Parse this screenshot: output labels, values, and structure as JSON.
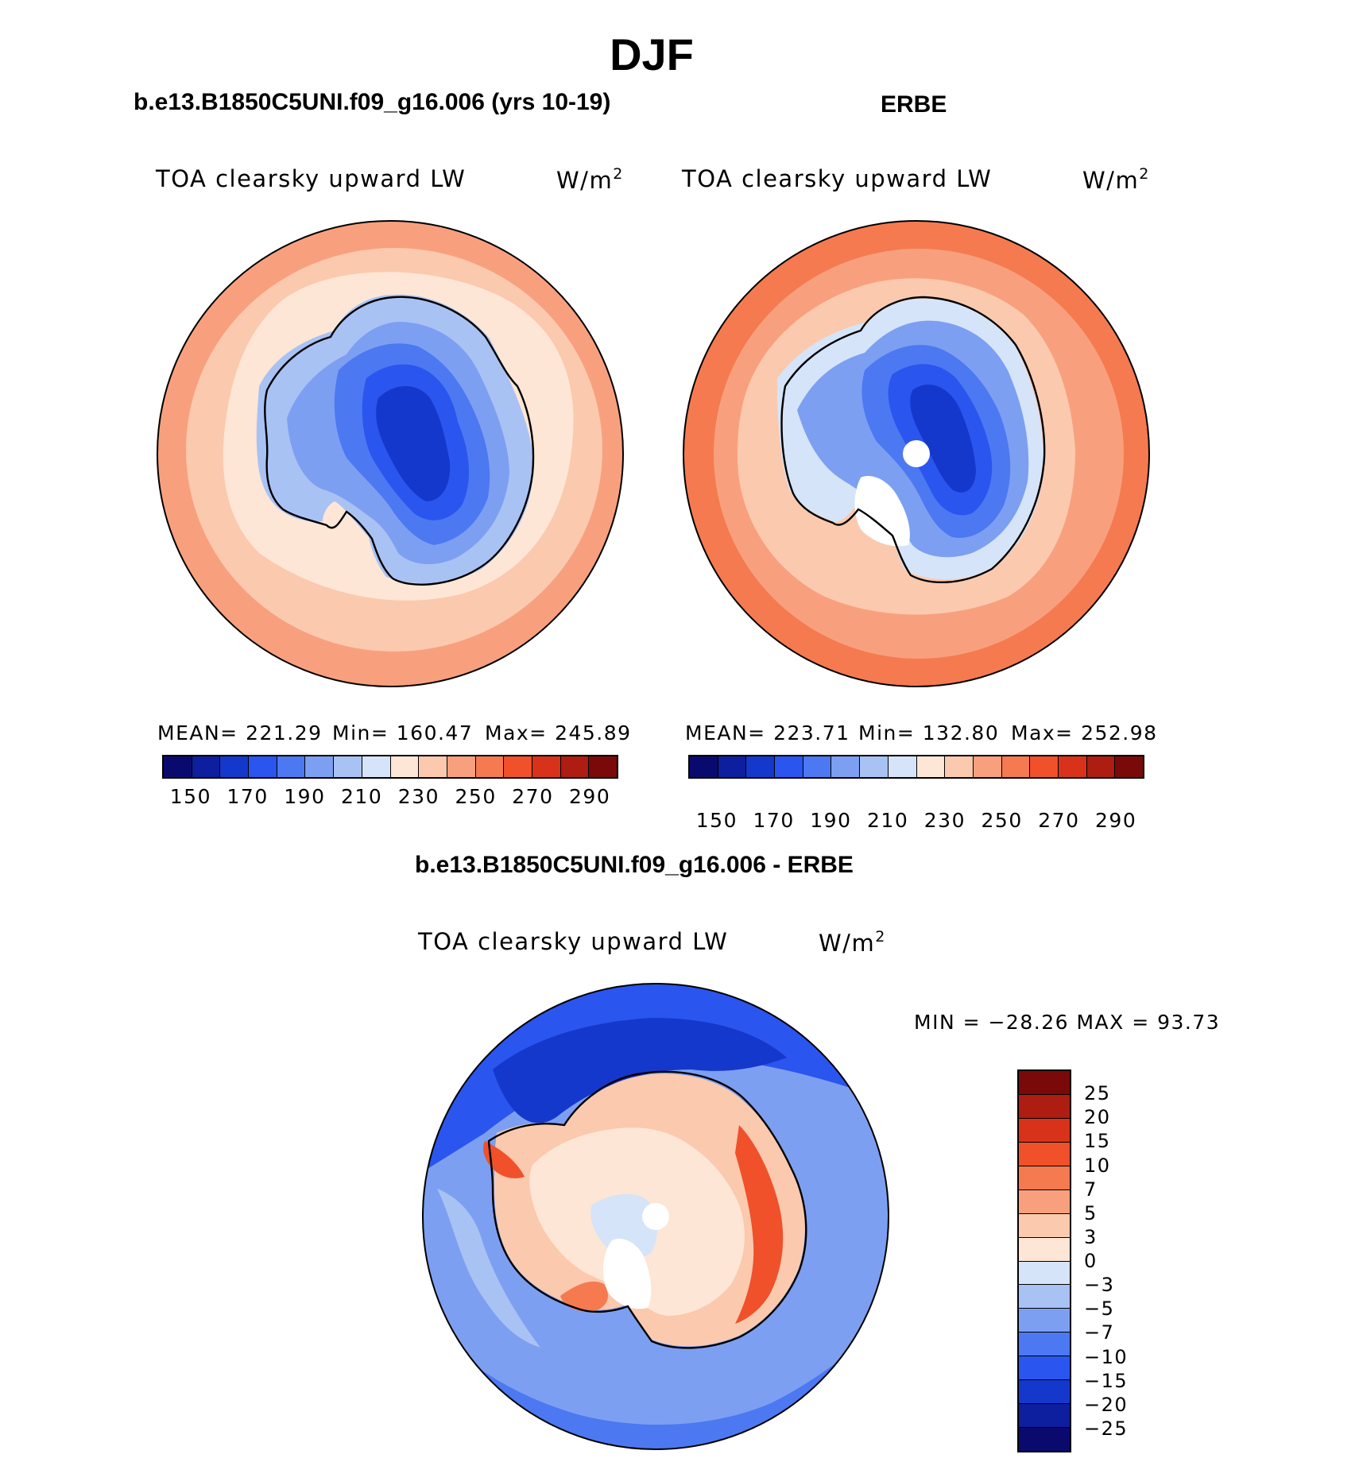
{
  "season_title": "DJF",
  "panels": {
    "model": {
      "title": "b.e13.B1850C5UNI.f09_g16.006 (yrs 10-19)",
      "var_label": "TOA clearsky upward LW",
      "units_base": "W/m",
      "units_exp": "2",
      "stats": {
        "mean": "MEAN= 221.29",
        "min": "Min= 160.47",
        "max": "Max= 245.89"
      }
    },
    "obs": {
      "title": "ERBE",
      "var_label": "TOA clearsky upward LW",
      "units_base": "W/m",
      "units_exp": "2",
      "stats": {
        "mean": "MEAN= 223.71",
        "min": "Min= 132.80",
        "max": "Max= 252.98"
      }
    },
    "diff": {
      "title": "b.e13.B1850C5UNI.f09_g16.006 - ERBE",
      "var_label": "TOA clearsky upward LW",
      "units_base": "W/m",
      "units_exp": "2",
      "minmax": "MIN = −28.26 MAX =   93.73"
    }
  },
  "abs_colorbar": {
    "colors": [
      "#0a0a6e",
      "#0d1e9e",
      "#1538cc",
      "#2a55ee",
      "#4c78f2",
      "#7d9ff2",
      "#a9c2f4",
      "#d5e4f8",
      "#fde6d5",
      "#fbc9ae",
      "#f8a07e",
      "#f57a50",
      "#f0502a",
      "#d8331a",
      "#ad1d12",
      "#7a0a0a"
    ],
    "tick_labels": [
      "150",
      "170",
      "190",
      "210",
      "230",
      "250",
      "270",
      "290"
    ]
  },
  "diff_colorbar": {
    "colors": [
      "#7a0a0a",
      "#ad1d12",
      "#d8331a",
      "#f0502a",
      "#f57a50",
      "#f8a07e",
      "#fbc9ae",
      "#fde6d5",
      "#d5e4f8",
      "#a9c2f4",
      "#7d9ff2",
      "#4c78f2",
      "#2a55ee",
      "#1538cc",
      "#0d1e9e",
      "#0a0a6e"
    ],
    "tick_labels": [
      "25",
      "20",
      "15",
      "10",
      "7",
      "5",
      "3",
      "0",
      "−3",
      "−5",
      "−7",
      "−10",
      "−15",
      "−20",
      "−25"
    ]
  },
  "chart_data": [
    {
      "type": "heatmap",
      "projection": "south polar stereographic",
      "title": "b.e13.B1850C5UNI.f09_g16.006 (yrs 10-19)",
      "variable": "TOA clearsky upward LW",
      "units": "W/m2",
      "mean": 221.29,
      "min": 160.47,
      "max": 245.89,
      "contour_levels": [
        140,
        150,
        160,
        170,
        180,
        190,
        200,
        210,
        220,
        230,
        240,
        250,
        260,
        270,
        280,
        290,
        300
      ]
    },
    {
      "type": "heatmap",
      "projection": "south polar stereographic",
      "title": "ERBE",
      "variable": "TOA clearsky upward LW",
      "units": "W/m2",
      "mean": 223.71,
      "min": 132.8,
      "max": 252.98,
      "contour_levels": [
        140,
        150,
        160,
        170,
        180,
        190,
        200,
        210,
        220,
        230,
        240,
        250,
        260,
        270,
        280,
        290,
        300
      ]
    },
    {
      "type": "heatmap",
      "projection": "south polar stereographic",
      "title": "b.e13.B1850C5UNI.f09_g16.006 - ERBE",
      "variable": "TOA clearsky upward LW",
      "units": "W/m2",
      "min": -28.26,
      "max": 93.73,
      "contour_levels": [
        -25,
        -20,
        -15,
        -10,
        -7,
        -5,
        -3,
        0,
        3,
        5,
        7,
        10,
        15,
        20,
        25
      ]
    }
  ]
}
